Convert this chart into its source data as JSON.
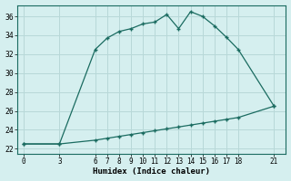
{
  "xlabel": "Humidex (Indice chaleur)",
  "background_color": "#d5efef",
  "grid_color": "#b8d8d8",
  "line_color": "#1a6b60",
  "curve1_x": [
    0,
    3,
    6,
    7,
    8,
    9,
    10,
    11,
    12,
    13,
    14,
    15,
    16,
    17,
    18,
    21
  ],
  "curve1_y": [
    22.5,
    22.5,
    32.5,
    33.7,
    34.4,
    34.7,
    35.2,
    35.4,
    36.2,
    34.7,
    36.5,
    36.0,
    35.0,
    33.8,
    32.5,
    26.5
  ],
  "curve2_x": [
    0,
    3,
    6,
    7,
    8,
    9,
    10,
    11,
    12,
    13,
    14,
    15,
    16,
    17,
    18,
    21
  ],
  "curve2_y": [
    22.5,
    22.5,
    22.9,
    23.1,
    23.3,
    23.5,
    23.7,
    23.9,
    24.1,
    24.3,
    24.5,
    24.7,
    24.9,
    25.1,
    25.3,
    26.5
  ],
  "xticks": [
    0,
    3,
    6,
    7,
    8,
    9,
    10,
    11,
    12,
    13,
    14,
    15,
    16,
    17,
    18,
    21
  ],
  "yticks": [
    22,
    24,
    26,
    28,
    30,
    32,
    34,
    36
  ],
  "xlim": [
    -0.5,
    22
  ],
  "ylim": [
    21.5,
    37.2
  ]
}
